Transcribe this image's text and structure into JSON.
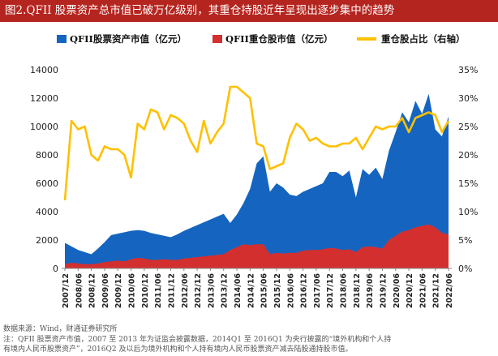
{
  "title": "图2.QFII 股票资产总市值已破万亿级别，其重仓持股近年呈现出逐步集中的趋势",
  "legend": {
    "series1": "QFII股票资产市值（亿元）",
    "series2": "QFII重仓股市值（亿元）",
    "series3": "重仓股占比（右轴）"
  },
  "colors": {
    "title_bg": "#b5251f",
    "blue": "#1565c0",
    "red": "#d32f2f",
    "yellow": "#ffc000"
  },
  "notes": {
    "source": "数据来源：Wind，财通证券研究所",
    "line1": "注：QFII 股票资产市值，2007 至 2013 年为证监会披露数据，2014Q1 至 2016Q1 为央行披露的“境外机构和个人持",
    "line2": "有境内人民币股票资产”，2016Q2 及以后为境外机构和个人持有境内人民币股票资产减去陆股通持股市值。"
  },
  "chart_data": {
    "type": "area",
    "x": [
      "2007/12",
      "2008/03",
      "2008/06",
      "2008/09",
      "2008/12",
      "2009/03",
      "2009/06",
      "2009/09",
      "2009/12",
      "2010/03",
      "2010/06",
      "2010/09",
      "2010/12",
      "2011/03",
      "2011/06",
      "2011/09",
      "2011/12",
      "2012/03",
      "2012/06",
      "2012/09",
      "2012/12",
      "2013/03",
      "2013/06",
      "2013/09",
      "2013/12",
      "2014/03",
      "2014/06",
      "2014/09",
      "2014/12",
      "2015/03",
      "2015/06",
      "2015/09",
      "2015/12",
      "2016/03",
      "2016/06",
      "2016/09",
      "2016/12",
      "2017/03",
      "2017/06",
      "2017/09",
      "2017/12",
      "2018/03",
      "2018/06",
      "2018/09",
      "2018/12",
      "2019/03",
      "2019/06",
      "2019/09",
      "2019/12",
      "2020/03",
      "2020/06",
      "2020/09",
      "2020/12",
      "2021/03",
      "2021/06",
      "2021/09",
      "2021/12",
      "2022/03",
      "2022/06"
    ],
    "x_tick_labels": [
      "2007/12",
      "2008/06",
      "2008/12",
      "2009/06",
      "2009/12",
      "2010/06",
      "2010/12",
      "2011/06",
      "2011/12",
      "2012/06",
      "2012/12",
      "2013/06",
      "2013/12",
      "2014/06",
      "2014/12",
      "2015/06",
      "2015/12",
      "2016/06",
      "2016/12",
      "2017/06",
      "2017/12",
      "2018/06",
      "2018/12",
      "2019/06",
      "2019/12",
      "2020/06",
      "2020/12",
      "2021/06",
      "2021/12",
      "2022/06"
    ],
    "y_left": {
      "min": 0,
      "max": 14000,
      "ticks": [
        "0",
        "2000",
        "4000",
        "6000",
        "8000",
        "10000",
        "12000",
        "14000"
      ]
    },
    "y_right": {
      "min": 0,
      "max": 35,
      "ticks": [
        "0%",
        "5%",
        "10%",
        "15%",
        "20%",
        "25%",
        "30%",
        "35%"
      ]
    },
    "series": [
      {
        "name": "QFII股票资产市值（亿元）",
        "axis": "left",
        "kind": "area",
        "values": [
          1800,
          1550,
          1300,
          1150,
          1000,
          1400,
          1850,
          2350,
          2450,
          2550,
          2650,
          2700,
          2650,
          2500,
          2400,
          2300,
          2200,
          2400,
          2650,
          2850,
          3050,
          3250,
          3450,
          3650,
          3850,
          3200,
          3800,
          4600,
          5600,
          7400,
          7900,
          5400,
          6000,
          5700,
          5200,
          5100,
          5400,
          5600,
          5800,
          6000,
          6800,
          6800,
          6500,
          6900,
          5000,
          7000,
          6600,
          7100,
          6300,
          8300,
          9600,
          11000,
          10300,
          11800,
          10900,
          12300,
          9800,
          9300,
          10700
        ]
      },
      {
        "name": "QFII重仓股市值（亿元）",
        "axis": "left",
        "kind": "area",
        "values": [
          300,
          400,
          350,
          300,
          300,
          350,
          450,
          500,
          550,
          500,
          650,
          750,
          700,
          600,
          600,
          650,
          600,
          600,
          700,
          750,
          800,
          850,
          900,
          950,
          1000,
          1300,
          1500,
          1700,
          1650,
          1700,
          1700,
          1000,
          1100,
          1050,
          1100,
          1100,
          1250,
          1300,
          1300,
          1350,
          1450,
          1400,
          1300,
          1350,
          1150,
          1500,
          1550,
          1500,
          1400,
          2000,
          2300,
          2600,
          2700,
          2900,
          3000,
          3100,
          2900,
          2500,
          2400
        ]
      },
      {
        "name": "重仓股占比（右轴）",
        "axis": "right",
        "kind": "line",
        "values": [
          12,
          26,
          24.5,
          25,
          20,
          19,
          21.5,
          21,
          21,
          20,
          16,
          25.5,
          24.5,
          28,
          27.5,
          24.5,
          27,
          26.5,
          25.5,
          22.5,
          20.5,
          26,
          22,
          24,
          25.5,
          32,
          32,
          31,
          30,
          22,
          21.5,
          17.5,
          18,
          18.5,
          23,
          25.5,
          24.5,
          22.5,
          23,
          22,
          21.5,
          21.5,
          22,
          22,
          23,
          21,
          23,
          25,
          24.5,
          25,
          25,
          26.5,
          24,
          26.5,
          27,
          27.5,
          27,
          24,
          26
        ]
      }
    ]
  }
}
